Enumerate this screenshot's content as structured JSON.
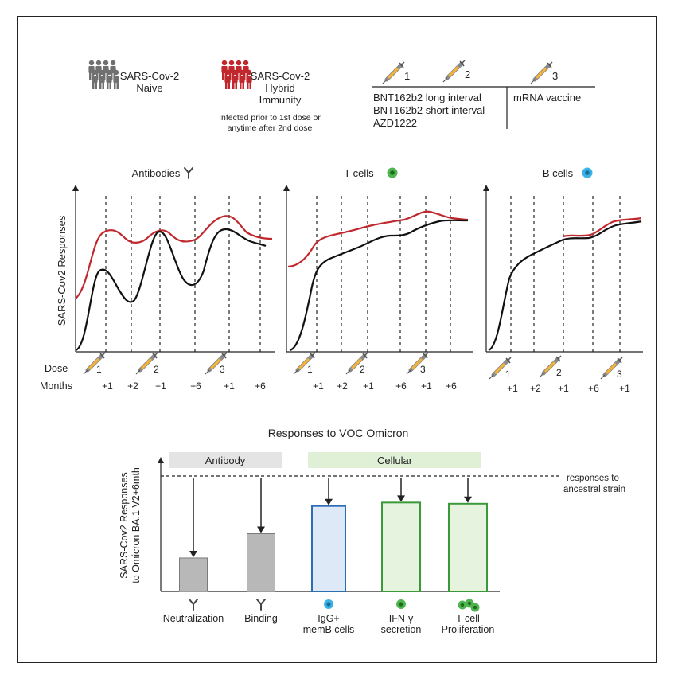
{
  "legend": {
    "naive": {
      "line1": "SARS-Cov-2",
      "line2": "Naive",
      "color": "#707070"
    },
    "hybrid": {
      "line1": "SARS-Cov-2",
      "line2": "Hybrid",
      "line3": "Immunity",
      "note1": "Infected prior to 1st dose or",
      "note2": "anytime after 2nd dose",
      "color": "#c0282d"
    }
  },
  "vaccine_table": {
    "dose_labels": [
      "1",
      "2",
      "3"
    ],
    "left_rows": [
      "BNT162b2 long interval",
      "BNT162b2 short interval",
      "AZD1222"
    ],
    "right_rows": [
      "mRNA vaccine"
    ]
  },
  "icons": {
    "syringe": "syringe-icon",
    "antibody": "antibody-icon",
    "t_cell": "green-cell-icon",
    "b_cell": "blue-cell-icon",
    "naive_people": "people-group-icon",
    "hybrid_people": "people-group-icon"
  },
  "timeline": {
    "ylabel": "SARS-Cov2 Responses",
    "dose_label": "Dose",
    "months_label": "Months",
    "doses": [
      "1",
      "2",
      "3"
    ],
    "months": [
      "+1",
      "+2",
      "+1",
      "+6",
      "+1",
      "+6"
    ],
    "months_b": [
      "+1",
      "+2",
      "+1",
      "+6",
      "+1"
    ],
    "panels": [
      {
        "title": "Antibodies"
      },
      {
        "title": "T cells"
      },
      {
        "title": "B cells"
      }
    ]
  },
  "bottom": {
    "title": "Responses to VOC Omicron",
    "ylabel_line1": "SARS-Cov2 Responses",
    "ylabel_line2": "to Omicron BA.1 V2+6mth",
    "antibody_header": "Antibody",
    "cellular_header": "Cellular",
    "ancestral_line1": "responses to",
    "ancestral_line2": "ancestral strain",
    "bars": [
      {
        "label1": "Neutralization",
        "label2": "",
        "value": 0.29
      },
      {
        "label1": "Binding",
        "label2": "",
        "value": 0.5
      },
      {
        "label1": "IgG+",
        "label2": "memB cells",
        "value": 0.74
      },
      {
        "label1": "IFN-γ",
        "label2": "secretion",
        "value": 0.77
      },
      {
        "label1": "T cell",
        "label2": "Proliferation",
        "value": 0.76
      }
    ]
  },
  "colors": {
    "naive_line": "#111111",
    "hybrid_line": "#c0282d",
    "bar_grey_fill": "#b8b8b8",
    "bar_blue_fill": "#dde9f6",
    "bar_blue_stroke": "#2e6db4",
    "bar_green_fill": "#e6f3df",
    "bar_green_stroke": "#3a9a3a",
    "header_grey": "#e4e4e4",
    "header_green": "#dff0d6"
  }
}
